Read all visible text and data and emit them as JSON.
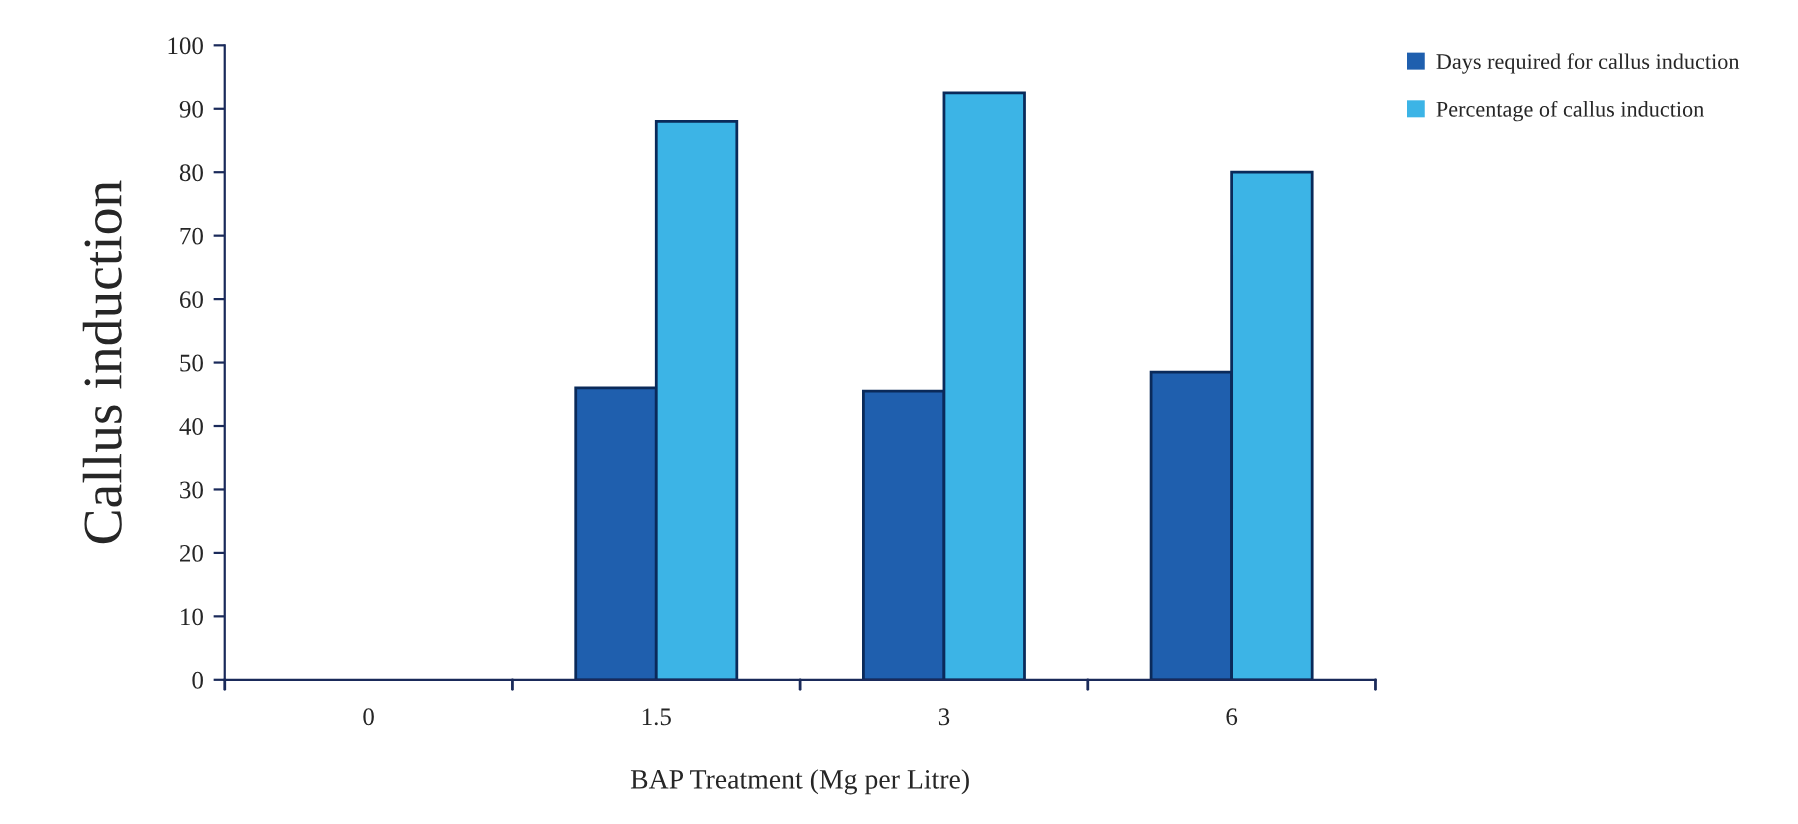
{
  "chart_data": {
    "type": "bar",
    "xlabel": "BAP Treatment (Mg per Litre)",
    "ylabel": "Callus induction",
    "categories": [
      "0",
      "1.5",
      "3",
      "6"
    ],
    "series": [
      {
        "name": "Days required for callus induction",
        "color": "#1f5fae",
        "values": [
          0,
          46,
          45.5,
          48.5
        ]
      },
      {
        "name": "Percentage of callus induction",
        "color": "#3cb4e6",
        "values": [
          0,
          88,
          92.5,
          80
        ]
      }
    ],
    "ylim": [
      0,
      100
    ],
    "yticks": [
      0,
      10,
      20,
      30,
      40,
      50,
      60,
      70,
      80,
      90,
      100
    ],
    "grid": false,
    "legend": "top right"
  }
}
